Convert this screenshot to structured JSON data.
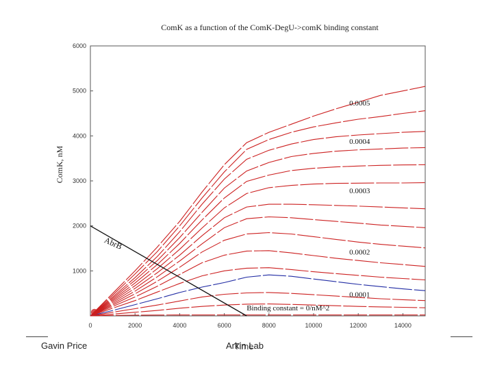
{
  "slide": {
    "footer_left": "Gavin Price",
    "footer_center_a": "Arkin Lab",
    "footer_center_b": "Time"
  },
  "chart_data": {
    "type": "line",
    "title": "ComK as a function of the ComK-DegU->comK binding constant",
    "xlabel": "",
    "ylabel": "ComK, nM",
    "xlim": [
      0,
      15000
    ],
    "ylim": [
      0,
      6000
    ],
    "xticks": [
      "0",
      "2000",
      "4000",
      "6000",
      "8000",
      "10000",
      "12000",
      "14000"
    ],
    "yticks": [
      "1000",
      "2000",
      "3000",
      "4000",
      "5000",
      "6000"
    ],
    "grid": false,
    "colors": {
      "family": "#cc1f1f",
      "highlight": "#1f2aa3",
      "abrb": "#111111"
    },
    "x": [
      0,
      1000,
      2000,
      3000,
      4000,
      5000,
      6000,
      7000,
      8000,
      9000,
      10000,
      11000,
      12000,
      13000,
      14000,
      15000
    ],
    "series": [
      {
        "name": "0.0005",
        "values": [
          0,
          500,
          1000,
          1530,
          2100,
          2750,
          3360,
          3850,
          4080,
          4260,
          4440,
          4600,
          4750,
          4900,
          5000,
          5100
        ],
        "style": "red"
      },
      {
        "name": "",
        "values": [
          0,
          460,
          930,
          1430,
          2000,
          2620,
          3200,
          3700,
          3920,
          4080,
          4200,
          4290,
          4370,
          4430,
          4500,
          4560
        ],
        "style": "red"
      },
      {
        "name": "0.0004",
        "values": [
          0,
          420,
          850,
          1320,
          1870,
          2480,
          3040,
          3480,
          3680,
          3820,
          3920,
          3980,
          4020,
          4050,
          4080,
          4100
        ],
        "style": "red"
      },
      {
        "name": "",
        "values": [
          0,
          390,
          790,
          1230,
          1740,
          2300,
          2840,
          3220,
          3410,
          3540,
          3610,
          3660,
          3690,
          3710,
          3730,
          3740
        ],
        "style": "red"
      },
      {
        "name": "",
        "values": [
          0,
          360,
          730,
          1140,
          1610,
          2130,
          2620,
          2990,
          3130,
          3230,
          3280,
          3310,
          3330,
          3345,
          3355,
          3360
        ],
        "style": "red"
      },
      {
        "name": "0.0003",
        "values": [
          0,
          330,
          670,
          1050,
          1480,
          1950,
          2400,
          2720,
          2850,
          2900,
          2930,
          2945,
          2950,
          2955,
          2955,
          2960
        ],
        "style": "red"
      },
      {
        "name": "",
        "values": [
          0,
          300,
          610,
          960,
          1350,
          1780,
          2180,
          2420,
          2480,
          2480,
          2470,
          2455,
          2440,
          2420,
          2400,
          2380
        ],
        "style": "red"
      },
      {
        "name": "",
        "values": [
          0,
          270,
          550,
          870,
          1220,
          1600,
          1960,
          2160,
          2200,
          2180,
          2140,
          2100,
          2060,
          2020,
          1990,
          1960
        ],
        "style": "red"
      },
      {
        "name": "0.0002",
        "values": [
          0,
          240,
          490,
          770,
          1080,
          1420,
          1680,
          1820,
          1850,
          1820,
          1760,
          1700,
          1640,
          1590,
          1550,
          1510
        ],
        "style": "red"
      },
      {
        "name": "",
        "values": [
          0,
          210,
          420,
          660,
          920,
          1180,
          1350,
          1440,
          1450,
          1400,
          1340,
          1280,
          1230,
          1180,
          1140,
          1100
        ],
        "style": "red"
      },
      {
        "name": "",
        "values": [
          0,
          170,
          340,
          530,
          720,
          890,
          1000,
          1060,
          1070,
          1030,
          980,
          940,
          900,
          860,
          830,
          800
        ],
        "style": "red"
      },
      {
        "name": "0.0001",
        "values": [
          0,
          120,
          250,
          380,
          520,
          640,
          740,
          860,
          910,
          880,
          820,
          760,
          700,
          650,
          600,
          560
        ],
        "style": "blue"
      },
      {
        "name": "",
        "values": [
          0,
          80,
          160,
          240,
          330,
          420,
          480,
          510,
          520,
          500,
          470,
          440,
          410,
          380,
          360,
          340
        ],
        "style": "red"
      },
      {
        "name": "",
        "values": [
          0,
          40,
          80,
          120,
          170,
          210,
          240,
          260,
          265,
          255,
          240,
          225,
          210,
          200,
          190,
          180
        ],
        "style": "red"
      },
      {
        "name": "Binding constant = 0/nM^2",
        "values": [
          0,
          10,
          15,
          18,
          20,
          20,
          20,
          20,
          20,
          20,
          20,
          20,
          20,
          20,
          20,
          20
        ],
        "style": "red"
      }
    ],
    "abrb_line": {
      "name": "AbrB",
      "x": [
        0,
        7000
      ],
      "y": [
        2000,
        0
      ]
    }
  }
}
